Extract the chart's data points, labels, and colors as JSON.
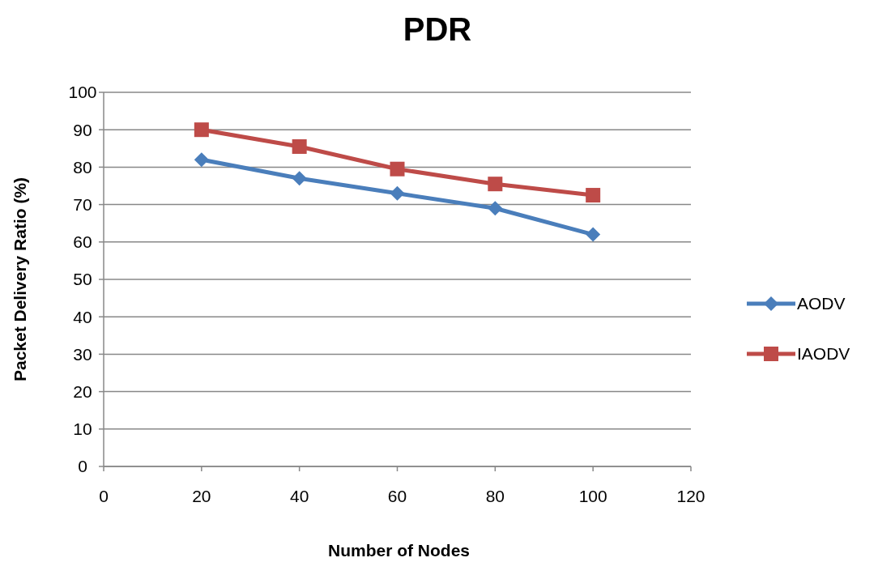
{
  "chart_data": {
    "type": "line",
    "title": "PDR",
    "xlabel": "Number of Nodes",
    "ylabel": "Packet Delivery Ratio (%)",
    "x": [
      20,
      40,
      60,
      80,
      100
    ],
    "series": [
      {
        "name": "AODV",
        "color": "#4a7ebb",
        "marker": "diamond",
        "values": [
          82,
          77,
          73,
          69,
          62
        ]
      },
      {
        "name": "IAODV",
        "color": "#be4b48",
        "marker": "square",
        "values": [
          90,
          85.5,
          79.5,
          75.5,
          72.5
        ]
      }
    ],
    "xlim": [
      0,
      120
    ],
    "xticks": [
      0,
      20,
      40,
      60,
      80,
      100,
      120
    ],
    "ylim": [
      0,
      100
    ],
    "yticks": [
      0,
      10,
      20,
      30,
      40,
      50,
      60,
      70,
      80,
      90,
      100
    ],
    "grid": "y",
    "legend": "right",
    "line_style": "solid"
  }
}
